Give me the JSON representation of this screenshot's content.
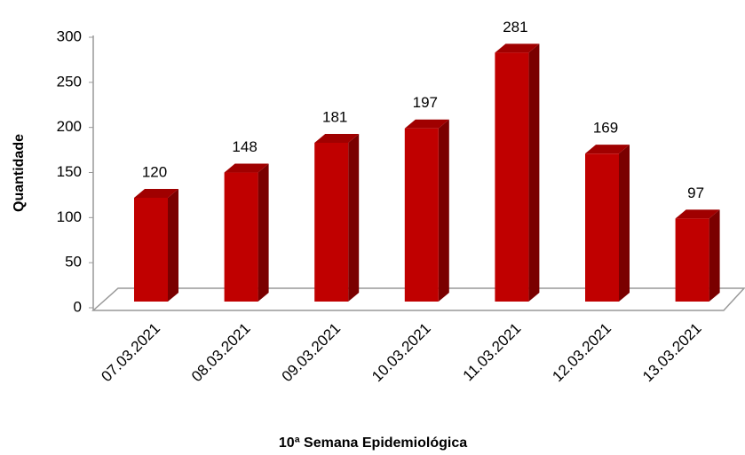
{
  "chart_data": {
    "type": "bar",
    "x_label": "10ª Semana Epidemiológica",
    "y_label": "Quantidade",
    "categories": [
      "07.03.2021",
      "08.03.2021",
      "09.03.2021",
      "10.03.2021",
      "11.03.2021",
      "12.03.2021",
      "13.03.2021"
    ],
    "values": [
      120,
      148,
      181,
      197,
      281,
      169,
      97
    ],
    "color": "#c00000",
    "ylim": [
      0,
      300
    ],
    "yticks": [
      0,
      50,
      100,
      150,
      200,
      250,
      300
    ]
  }
}
